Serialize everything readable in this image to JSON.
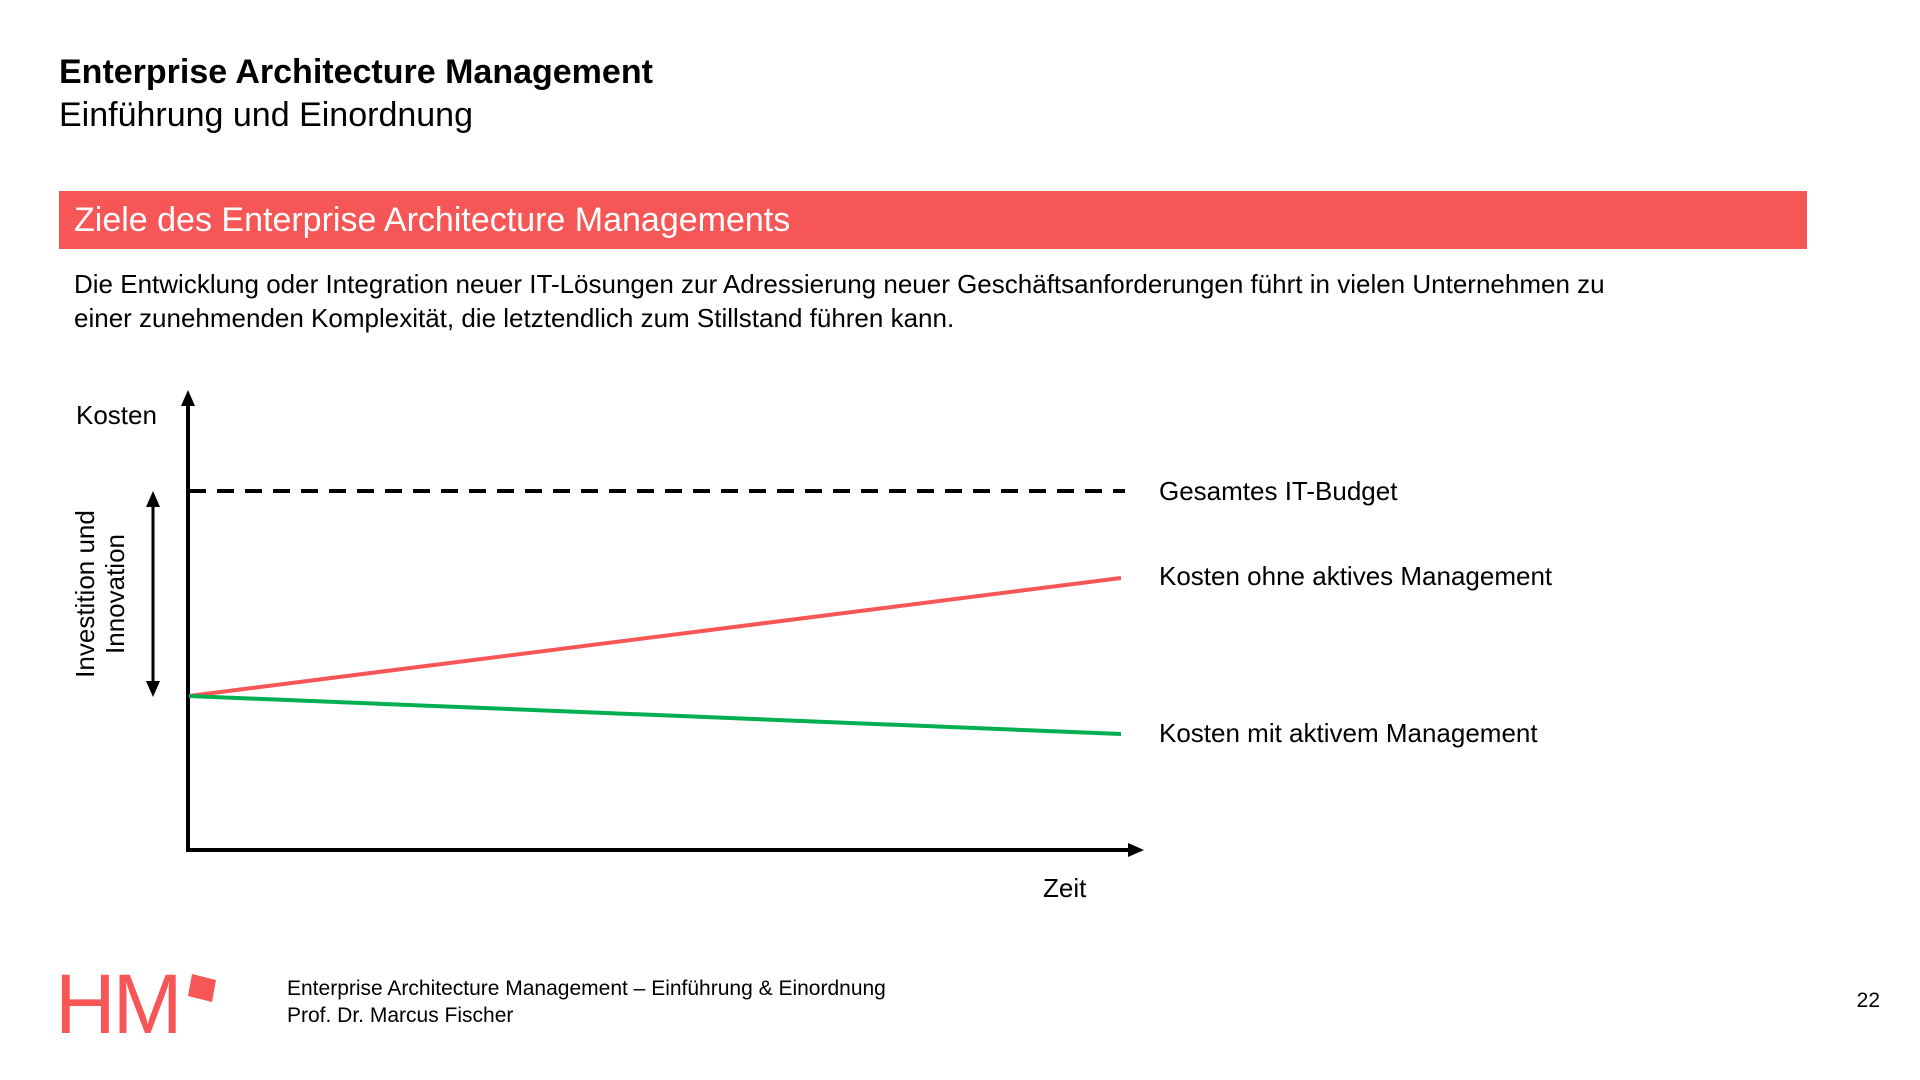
{
  "slide": {
    "title": "Enterprise Architecture Management",
    "subtitle": "Einführung und Einordnung",
    "section_heading": "Ziele des Enterprise Architecture Managements",
    "intro_line_1": "Die Entwicklung oder Integration neuer IT-Lösungen zur Adressierung neuer Geschäftsanforderungen führt in vielen Unternehmen zu",
    "intro_line_2": "einer zunehmenden Komplexität, die letztendlich zum Stillstand führen kann.",
    "accent_color": "#f75656"
  },
  "diagram": {
    "y_axis_label": "Kosten",
    "x_axis_label": "Zeit",
    "range_label_line_1": "Investition und",
    "range_label_line_2": "Innovation",
    "budget_label": "Gesamtes IT-Budget",
    "rising_cost_label": "Kosten ohne aktives Management",
    "falling_cost_label": "Kosten mit aktivem Management",
    "rising_cost_color": "#f75656",
    "falling_cost_color": "#00b050",
    "budget_line_style": "dashed"
  },
  "footer": {
    "logo_text": "HM",
    "course_title": "Enterprise Architecture Management – Einführung & Einordnung",
    "author": "Prof. Dr. Marcus Fischer",
    "page_number": "22"
  }
}
